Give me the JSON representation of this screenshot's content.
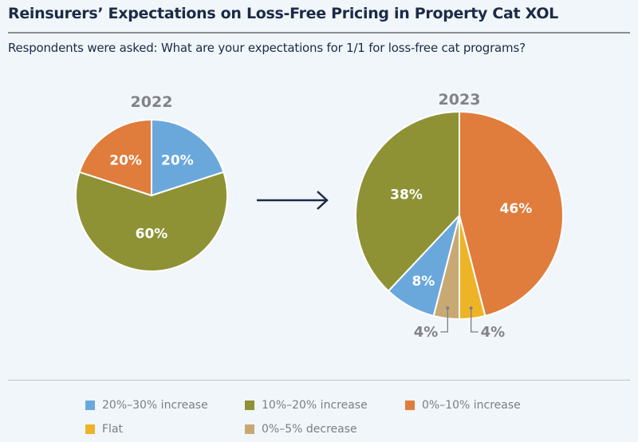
{
  "title": "Reinsurers’ Expectations on Loss-Free Pricing in Property Cat XOL",
  "subtitle": "Respondents were asked: What are your expectations for 1/1 for loss-free cat programs?",
  "chart_data": [
    {
      "type": "pie",
      "title": "2022",
      "slices": [
        {
          "name": "20%–30% increase",
          "value": 20,
          "label": "20%"
        },
        {
          "name": "10%–20% increase",
          "value": 60,
          "label": "60%"
        },
        {
          "name": "0%–10% increase",
          "value": 20,
          "label": "20%"
        }
      ]
    },
    {
      "type": "pie",
      "title": "2023",
      "slices": [
        {
          "name": "0%–10% increase",
          "value": 46,
          "label": "46%"
        },
        {
          "name": "Flat",
          "value": 4,
          "label": "4%"
        },
        {
          "name": "0%–5% decrease",
          "value": 4,
          "label": "4%"
        },
        {
          "name": "20%–30% increase",
          "value": 8,
          "label": "8%"
        },
        {
          "name": "10%–20% increase",
          "value": 38,
          "label": "38%"
        }
      ]
    }
  ],
  "legend": [
    {
      "name": "20%–30% increase",
      "color": "#6aa8dc"
    },
    {
      "name": "10%–20% increase",
      "color": "#8e9234"
    },
    {
      "name": "0%–10% increase",
      "color": "#e07c3c"
    },
    {
      "name": "Flat",
      "color": "#eeb428"
    },
    {
      "name": "0%–5% decrease",
      "color": "#c8a974"
    }
  ]
}
